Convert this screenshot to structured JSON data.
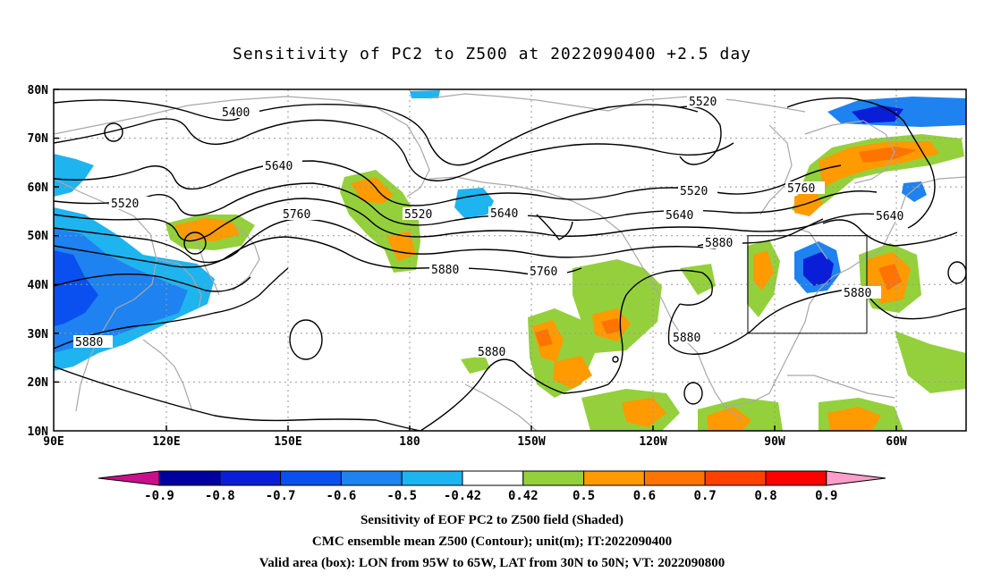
{
  "title": "Sensitivity of PC2 to Z500 at 2022090400 +2.5 day",
  "axes": {
    "lat_labels": [
      "80N",
      "70N",
      "60N",
      "50N",
      "40N",
      "30N",
      "20N",
      "10N"
    ],
    "lon_labels": [
      "90E",
      "120E",
      "150E",
      "180",
      "150W",
      "120W",
      "90W",
      "60W"
    ]
  },
  "contour_labels": {
    "c5400": "5400",
    "c5520_a": "5520",
    "c5520_b": "5520",
    "c5520_c": "5520",
    "c5520_d": "5520",
    "c5640_a": "5640",
    "c5640_b": "5640",
    "c5640_c": "5640",
    "c5640_d": "5640",
    "c5760_a": "5760",
    "c5760_b": "5760",
    "c5760_c": "5760",
    "c5880_a": "5880",
    "c5880_b": "5880",
    "c5880_c": "5880",
    "c5880_d": "5880",
    "c5880_e": "5880",
    "c5880_f": "5880"
  },
  "colorbar": {
    "labels": [
      "-0.9",
      "-0.8",
      "-0.7",
      "-0.6",
      "-0.5",
      "-0.42",
      "0.42",
      "0.5",
      "0.6",
      "0.7",
      "0.8",
      "0.9"
    ],
    "colors": [
      "#0000a0",
      "#0a1ed8",
      "#0a50f0",
      "#1e82f0",
      "#1eb4f0",
      "#ffffff",
      "#94d03c",
      "#ff9a00",
      "#ff7300",
      "#ff4000",
      "#ff0000"
    ],
    "under_color": "#c8108c",
    "over_color": "#ff9ec8"
  },
  "footer": {
    "line1": "Sensitivity of EOF PC2 to Z500 field (Shaded)",
    "line2": "CMC ensemble mean Z500 (Contour); unit(m); IT:2022090400",
    "line3": "Valid area (box): LON from 95W to 65W, LAT from 30N to 50N; VT: 2022090800"
  },
  "colors": {
    "contour": "#000000",
    "coast": "#a8a8a8",
    "grid": "#999999",
    "negative_blue": "#1e82f0",
    "negative_cyan": "#1eb4f0",
    "positive_green": "#94d03c",
    "positive_orange": "#ff9a00",
    "positive_red": "#ff4000"
  }
}
